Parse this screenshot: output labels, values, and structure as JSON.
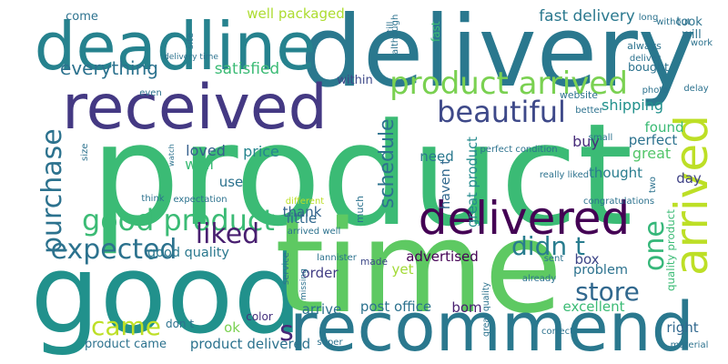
{
  "words": [
    {
      "text": "product",
      "color": "#3bbb75"
    },
    {
      "text": "good",
      "color": "#21918c"
    },
    {
      "text": "time",
      "color": "#5ec962"
    },
    {
      "text": "delivery",
      "color": "#2a788e"
    },
    {
      "text": "received",
      "color": "#443983"
    },
    {
      "text": "recommend",
      "color": "#2a788e"
    },
    {
      "text": "deadline",
      "color": "#26828e"
    },
    {
      "text": "arrived",
      "color": "#bddf26"
    },
    {
      "text": "delivered",
      "color": "#440154"
    },
    {
      "text": "product arrived",
      "color": "#7ad151"
    },
    {
      "text": "good product",
      "color": "#3bbb75"
    },
    {
      "text": "beautiful",
      "color": "#3e4989"
    },
    {
      "text": "everything",
      "color": "#2c728e"
    },
    {
      "text": "expected",
      "color": "#2c728e"
    },
    {
      "text": "liked",
      "color": "#481f70"
    },
    {
      "text": "came",
      "color": "#bddf26"
    },
    {
      "text": "purchase",
      "color": "#2c728e"
    },
    {
      "text": "didn t",
      "color": "#287c8e"
    },
    {
      "text": "store",
      "color": "#31688e"
    },
    {
      "text": "one",
      "color": "#35b779"
    },
    {
      "text": "s",
      "color": "#482878"
    },
    {
      "text": "satisfied",
      "color": "#3bbb75"
    },
    {
      "text": "fast delivery",
      "color": "#2a788e"
    },
    {
      "text": "well packaged",
      "color": "#addc30"
    },
    {
      "text": "shipping",
      "color": "#21918c"
    },
    {
      "text": "schedule",
      "color": "#2c728e"
    },
    {
      "text": "great",
      "color": "#52c569"
    },
    {
      "text": "buy",
      "color": "#472c7a"
    },
    {
      "text": "loved",
      "color": "#355f8d"
    },
    {
      "text": "price",
      "color": "#25858e"
    },
    {
      "text": "well",
      "color": "#3bbb75"
    },
    {
      "text": "use",
      "color": "#2c728e"
    },
    {
      "text": "need",
      "color": "#2a788e"
    },
    {
      "text": "haven t",
      "color": "#31688e"
    },
    {
      "text": "found",
      "color": "#3bbb75"
    },
    {
      "text": "perfect",
      "color": "#2c728e"
    },
    {
      "text": "thought",
      "color": "#287c8e"
    },
    {
      "text": "day",
      "color": "#414487"
    },
    {
      "text": "great product",
      "color": "#238a8d"
    },
    {
      "text": "quality product",
      "color": "#3bbb75"
    },
    {
      "text": "advertised",
      "color": "#440154"
    },
    {
      "text": "thank",
      "color": "#33638d"
    },
    {
      "text": "little",
      "color": "#31688e"
    },
    {
      "text": "good quality",
      "color": "#2a788e"
    },
    {
      "text": "made",
      "color": "#3e4989"
    },
    {
      "text": "box",
      "color": "#3f4788"
    },
    {
      "text": "problem",
      "color": "#2c728e"
    },
    {
      "text": "order",
      "color": "#433e85"
    },
    {
      "text": "yet",
      "color": "#a2da37"
    },
    {
      "text": "post office",
      "color": "#2c728e"
    },
    {
      "text": "arrive",
      "color": "#2c728e"
    },
    {
      "text": "bom",
      "color": "#481f70"
    },
    {
      "text": "excellent",
      "color": "#3bbb75"
    },
    {
      "text": "ok",
      "color": "#7ad151"
    },
    {
      "text": "right",
      "color": "#31688e"
    },
    {
      "text": "product came",
      "color": "#2c728e"
    },
    {
      "text": "product delivered",
      "color": "#2c728e"
    },
    {
      "text": "color",
      "color": "#46327e"
    },
    {
      "text": "don t",
      "color": "#2c728e"
    },
    {
      "text": "come",
      "color": "#2c728e"
    },
    {
      "text": "within",
      "color": "#3e4989"
    },
    {
      "text": "bought",
      "color": "#2c728e"
    },
    {
      "text": "took",
      "color": "#2c728e"
    },
    {
      "text": "will",
      "color": "#2c728e"
    },
    {
      "text": "fast",
      "color": "#3bbb75"
    },
    {
      "text": "website",
      "color": "#2c728e"
    },
    {
      "text": "always",
      "color": "#2c728e"
    },
    {
      "text": "congratulations",
      "color": "#2c728e"
    },
    {
      "text": "perfect condition",
      "color": "#2c728e"
    },
    {
      "text": "really liked",
      "color": "#2c728e"
    },
    {
      "text": "different",
      "color": "#bddf26"
    },
    {
      "text": "expectation",
      "color": "#2c728e"
    },
    {
      "text": "arrived well",
      "color": "#2c728e"
    },
    {
      "text": "lannister",
      "color": "#2c728e"
    },
    {
      "text": "sent",
      "color": "#2c728e"
    },
    {
      "text": "already",
      "color": "#2c728e"
    },
    {
      "text": "correct",
      "color": "#2c728e"
    },
    {
      "text": "super",
      "color": "#2c728e"
    },
    {
      "text": "material",
      "color": "#2c728e"
    },
    {
      "text": "delivery time",
      "color": "#2c728e"
    },
    {
      "text": "site",
      "color": "#2c728e"
    },
    {
      "text": "long",
      "color": "#2c728e"
    },
    {
      "text": "without",
      "color": "#2c728e"
    },
    {
      "text": "better",
      "color": "#2c728e"
    },
    {
      "text": "photo",
      "color": "#2c728e"
    },
    {
      "text": "delay",
      "color": "#2c728e"
    },
    {
      "text": "even",
      "color": "#2c728e"
    },
    {
      "text": "small",
      "color": "#2c728e"
    },
    {
      "text": "much",
      "color": "#2c728e"
    },
    {
      "text": "watch",
      "color": "#2c728e"
    },
    {
      "text": "think",
      "color": "#2c728e"
    },
    {
      "text": "size",
      "color": "#2c728e"
    },
    {
      "text": "two",
      "color": "#2c728e"
    },
    {
      "text": "missing",
      "color": "#2c728e"
    },
    {
      "text": "great quality",
      "color": "#2c728e"
    },
    {
      "text": "service",
      "color": "#2c728e"
    },
    {
      "text": "still",
      "color": "#2c728e"
    },
    {
      "text": "deliver",
      "color": "#2c728e"
    },
    {
      "text": "work",
      "color": "#2c728e"
    },
    {
      "text": "although",
      "color": "#2c728e"
    }
  ]
}
